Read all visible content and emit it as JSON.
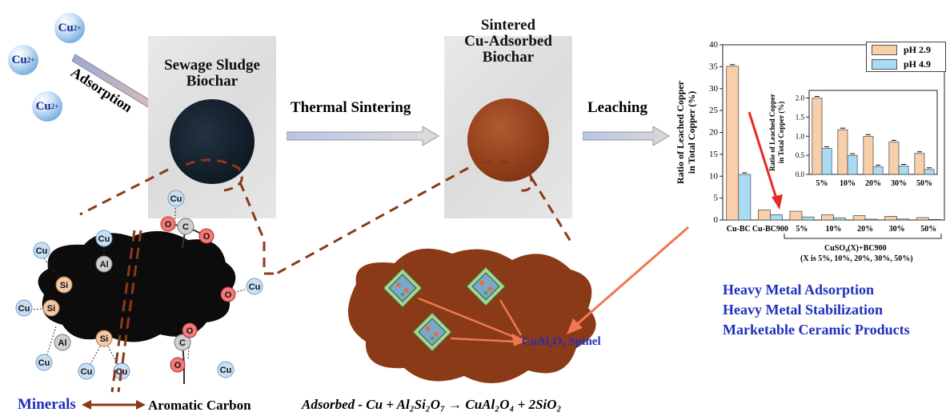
{
  "ions": {
    "label": "Cu",
    "charge": "2+"
  },
  "labels": {
    "adsorption": "Adsorption",
    "sewage_sludge_biochar": [
      "Sewage Sludge",
      "Biochar"
    ],
    "thermal_sintering": "Thermal Sintering",
    "sintered_biochar": [
      "Sintered",
      "Cu-Adsorbed",
      "Biochar"
    ],
    "leaching": "Leaching",
    "minerals": "Minerals",
    "aromatic_carbon": "Aromatic Carbon",
    "spinel": "CuAl₂O₄ Spinel",
    "equation": "Adsorbed - Cu + Al₂Si₂O₇ → CuAl₂O₄ + 2SiO₂"
  },
  "benefits": [
    "Heavy Metal Adsorption",
    "Heavy Metal Stabilization",
    "Marketable Ceramic Products"
  ],
  "structure_atoms": {
    "cu": "Cu",
    "al": "Al",
    "si": "Si",
    "c": "C",
    "o": "O"
  },
  "colors": {
    "ph29": "#f8cfa8",
    "ph49": "#a9dcf4",
    "sintered": "#8b3a17",
    "biochar": "#0f1a25",
    "dashed": "#8b3a17",
    "arrow_red": "#e8292a",
    "arrow_orange": "#f07850",
    "text_blue": "#1f2fbf"
  },
  "chart_data": [
    {
      "type": "bar",
      "ylabel": "Ratio of Leached Copper in Total Copper (%)",
      "ylim": [
        0,
        40
      ],
      "yticks": [
        0,
        5,
        10,
        15,
        20,
        25,
        30,
        35,
        40
      ],
      "categories": [
        "Cu-BC",
        "Cu-BC900",
        "5%",
        "10%",
        "20%",
        "30%",
        "50%"
      ],
      "group_label": "CuSO₄(X)+BC900",
      "group_note": "(X is 5%, 10%, 20%, 30%, 50%)",
      "series": [
        {
          "name": "pH 2.9",
          "values": [
            35.1,
            2.3,
            2.0,
            1.2,
            1.0,
            0.85,
            0.55
          ]
        },
        {
          "name": "pH 4.9",
          "values": [
            10.4,
            1.2,
            0.7,
            0.5,
            0.2,
            0.22,
            0.13
          ]
        }
      ],
      "legend": "top-right"
    },
    {
      "type": "bar",
      "ylabel": "Ratio of Leached Copper in Total Copper (%)",
      "ylim": [
        0,
        2.2
      ],
      "yticks": [
        0.0,
        0.5,
        1.0,
        1.5,
        2.0
      ],
      "categories": [
        "5%",
        "10%",
        "20%",
        "30%",
        "50%"
      ],
      "series": [
        {
          "name": "pH 2.9",
          "values": [
            2.0,
            1.17,
            1.0,
            0.85,
            0.55
          ]
        },
        {
          "name": "pH 4.9",
          "values": [
            0.68,
            0.5,
            0.2,
            0.22,
            0.13
          ]
        }
      ]
    }
  ]
}
